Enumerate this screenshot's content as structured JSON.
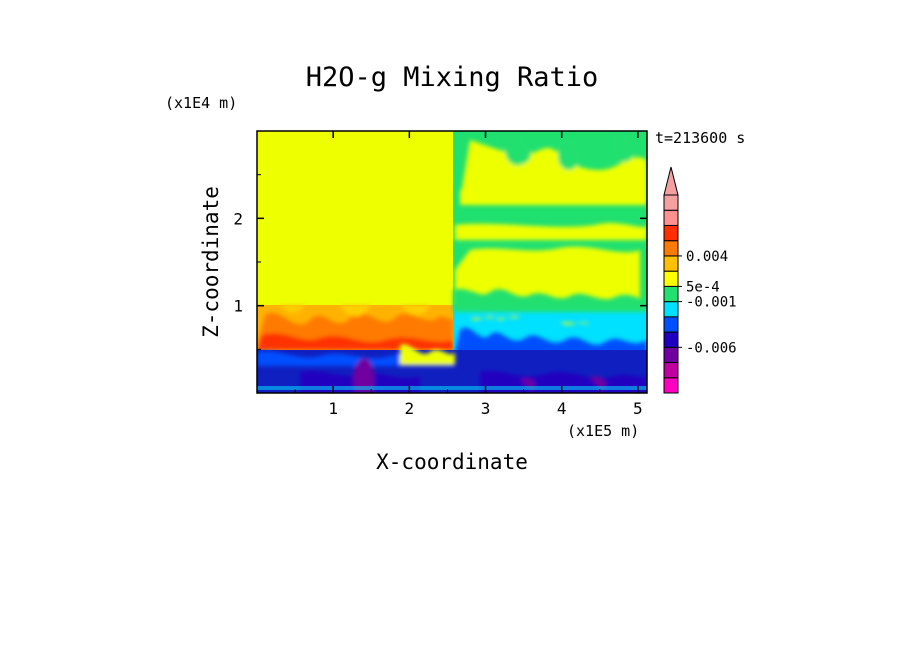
{
  "chart_data": {
    "type": "heatmap",
    "title": "H2O-g Mixing Ratio",
    "xlabel": "X-coordinate",
    "ylabel": "Z-coordinate",
    "x_unit": "(x1E5 m)",
    "y_unit": "(x1E4 m)",
    "time_label": "t=213600 s",
    "xlim": [
      0,
      5.12
    ],
    "ylim": [
      0,
      3.0
    ],
    "x_ticks": [
      1,
      2,
      3,
      4,
      5
    ],
    "y_ticks": [
      1,
      2
    ],
    "colorbar": {
      "levels": [
        "0.004",
        "5e-4",
        "-0.001",
        "-0.006"
      ],
      "colors": [
        "#ff00c0",
        "#c000a0",
        "#7000a0",
        "#2000c0",
        "#0050ff",
        "#00e0ff",
        "#20e070",
        "#ffff00",
        "#ffc000",
        "#ff7a00",
        "#ff3000",
        "#ff9090",
        "#f5a0a0"
      ],
      "extend": "max"
    },
    "regions": [
      {
        "name": "upper-left uniform",
        "x": [
          0,
          2.6
        ],
        "z": [
          1.0,
          3.0
        ],
        "color": "#eeff00"
      },
      {
        "name": "upper-right banded",
        "x": [
          2.6,
          5.12
        ],
        "z": [
          1.0,
          3.0
        ],
        "color": "#20e070"
      },
      {
        "name": "mid-left warm",
        "x": [
          0,
          2.6
        ],
        "z": [
          0.5,
          1.0
        ],
        "color": "#ffb300"
      },
      {
        "name": "mid-right mixed",
        "x": [
          2.6,
          5.12
        ],
        "z": [
          0.4,
          1.0
        ],
        "color": "#00e0ff"
      },
      {
        "name": "lower layer",
        "x": [
          0,
          5.12
        ],
        "z": [
          0,
          0.5
        ],
        "color": "#1020c0"
      }
    ]
  }
}
